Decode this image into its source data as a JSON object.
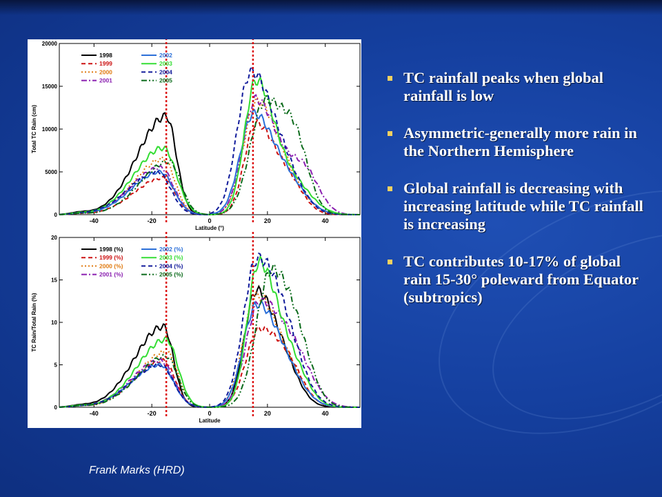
{
  "bullets": [
    "TC rainfall peaks when global rainfall is low",
    "Asymmetric-generally more rain in the Northern Hemisphere",
    "Global rainfall is decreasing with increasing latitude while TC rainfall is increasing",
    "TC contributes 10-17% of global rain 15-30° poleward from Equator (subtropics)"
  ],
  "credit": "Frank Marks (HRD)",
  "colors": {
    "1998": "#000000",
    "1999": "#cc1111",
    "2000": "#e07a10",
    "2001": "#8a1fb0",
    "2002": "#2b6fd8",
    "2003": "#33dd33",
    "2004": "#101a9a",
    "2005": "#0a6a1a",
    "reference_lines": "#dd1111",
    "bullet": "#f2d060"
  },
  "chart_data": [
    {
      "type": "line",
      "xlabel": "Latitude (°)",
      "ylabel": "Total TC Rain (cm)",
      "xlim": [
        -52,
        52
      ],
      "ylim": [
        0,
        20000
      ],
      "xticks": [
        -40,
        -20,
        0,
        20,
        40
      ],
      "yticks": [
        0,
        5000,
        10000,
        15000,
        20000
      ],
      "legend_position": "top-left",
      "reference_lines_x": [
        -15,
        15
      ],
      "series": [
        {
          "name": "1998",
          "style": "solid",
          "sh": [
            11500,
            -15,
            3.5,
            10
          ],
          "nh": [
            14000,
            15,
            4.5,
            6.5
          ],
          "ext": [
            0,
            0,
            0
          ]
        },
        {
          "name": "1999",
          "style": "dash",
          "sh": [
            4300,
            -16,
            4.0,
            10
          ],
          "nh": [
            10500,
            16,
            4.0,
            6.5
          ],
          "ext": [
            3000,
            28,
            5
          ]
        },
        {
          "name": "2000",
          "style": "dot",
          "sh": [
            6500,
            -16,
            4.0,
            10
          ],
          "nh": [
            12500,
            16,
            4.5,
            6.5
          ],
          "ext": [
            3500,
            27,
            6
          ]
        },
        {
          "name": "2001",
          "style": "dashdot",
          "sh": [
            5500,
            -17,
            4.5,
            10
          ],
          "nh": [
            13500,
            16,
            4.5,
            8
          ],
          "ext": [
            4500,
            33,
            5
          ]
        },
        {
          "name": "2002",
          "style": "solid",
          "sh": [
            5000,
            -17,
            4.5,
            10
          ],
          "nh": [
            11500,
            15,
            4.5,
            7
          ],
          "ext": [
            3000,
            28,
            6
          ]
        },
        {
          "name": "2003",
          "style": "solid",
          "sh": [
            7800,
            -16,
            4.5,
            10
          ],
          "nh": [
            15500,
            16,
            4.0,
            6.5
          ],
          "ext": [
            3000,
            30,
            6
          ]
        },
        {
          "name": "2004",
          "style": "dash",
          "sh": [
            5000,
            -18,
            4.5,
            10
          ],
          "nh": [
            16000,
            14,
            4.5,
            7
          ],
          "ext": [
            4500,
            26,
            6
          ]
        },
        {
          "name": "2005",
          "style": "dashdotdot",
          "sh": [
            6200,
            -14,
            4.0,
            10
          ],
          "nh": [
            13000,
            19,
            5.0,
            7
          ],
          "ext": [
            6500,
            30,
            4.5
          ]
        }
      ]
    },
    {
      "type": "line",
      "xlabel": "Latitude",
      "ylabel": "TC Rain/Total Rain (%)",
      "xlim": [
        -52,
        52
      ],
      "ylim": [
        0,
        20
      ],
      "xticks": [
        -40,
        -20,
        0,
        20,
        40
      ],
      "yticks": [
        0,
        5,
        10,
        15,
        20
      ],
      "legend_position": "top-left",
      "reference_lines_x": [
        -15,
        15
      ],
      "series": [
        {
          "name": "1998 (%)",
          "style": "solid",
          "sh": [
            9.5,
            -16,
            3.5,
            10
          ],
          "nh": [
            13.5,
            16,
            4.0,
            7
          ],
          "ext": [
            2.5,
            27,
            5
          ]
        },
        {
          "name": "1999 (%)",
          "style": "dash",
          "sh": [
            5.5,
            -16,
            4.0,
            10
          ],
          "nh": [
            9.0,
            17,
            4.5,
            8
          ],
          "ext": [
            2.5,
            28,
            5
          ]
        },
        {
          "name": "2000 (%)",
          "style": "dot",
          "sh": [
            6.5,
            -15,
            4.0,
            10
          ],
          "nh": [
            12.5,
            16,
            4.5,
            7
          ],
          "ext": [
            3.0,
            27,
            6
          ]
        },
        {
          "name": "2001 (%)",
          "style": "dashdot",
          "sh": [
            5.5,
            -17,
            4.5,
            10
          ],
          "nh": [
            12.0,
            17,
            4.5,
            8
          ],
          "ext": [
            4.5,
            30,
            6
          ]
        },
        {
          "name": "2002 (%)",
          "style": "solid",
          "sh": [
            5.0,
            -17,
            4.5,
            10
          ],
          "nh": [
            11.5,
            16,
            4.5,
            7
          ],
          "ext": [
            3.0,
            27,
            6
          ]
        },
        {
          "name": "2003 (%)",
          "style": "solid",
          "sh": [
            8.0,
            -15,
            4.0,
            10
          ],
          "nh": [
            17.0,
            17,
            4.0,
            7
          ],
          "ext": [
            3.0,
            30,
            5
          ]
        },
        {
          "name": "2004 (%)",
          "style": "dash",
          "sh": [
            5.0,
            -17,
            4.5,
            10
          ],
          "nh": [
            16.5,
            16,
            4.5,
            8
          ],
          "ext": [
            4.5,
            27,
            6
          ]
        },
        {
          "name": "2005 (%)",
          "style": "dashdotdot",
          "sh": [
            6.0,
            -15,
            4.0,
            10
          ],
          "nh": [
            15.5,
            21,
            5.0,
            7
          ],
          "ext": [
            4.5,
            31,
            5
          ]
        }
      ]
    }
  ]
}
